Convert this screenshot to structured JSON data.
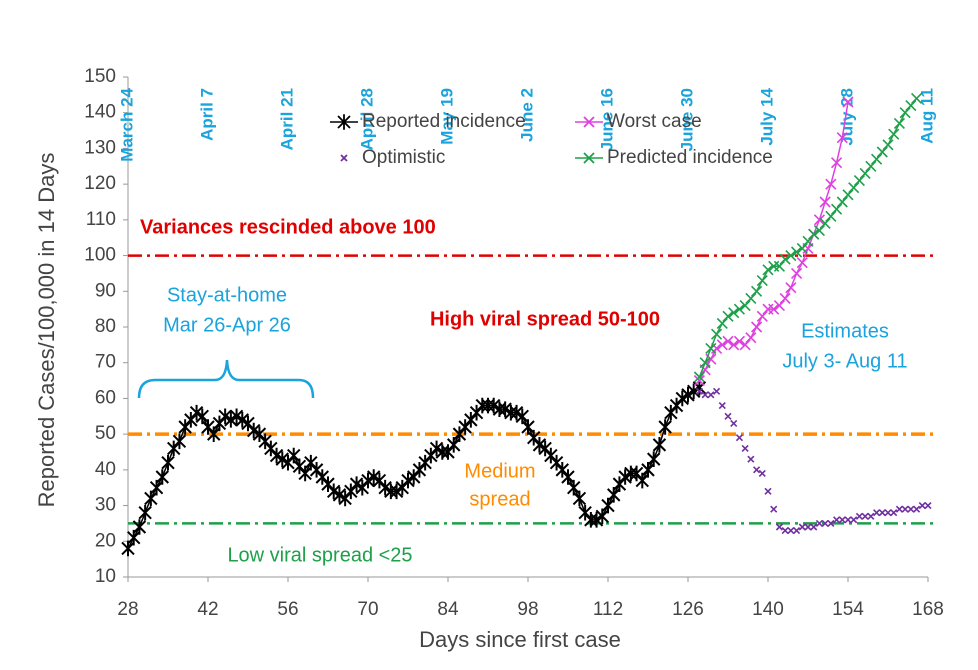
{
  "chart_data": {
    "type": "line",
    "xlabel": "Days since first case",
    "ylabel": "Reported Cases/100,000 in 14 Days",
    "xlim": [
      28,
      168
    ],
    "xticks": [
      28,
      42,
      56,
      70,
      84,
      98,
      112,
      126,
      140,
      154,
      168
    ],
    "ylim": [
      10,
      150
    ],
    "yticks": [
      10,
      20,
      30,
      40,
      50,
      60,
      70,
      80,
      90,
      100,
      110,
      120,
      130,
      140,
      150
    ],
    "x2ticks": [
      {
        "value": 28,
        "label": "March 24"
      },
      {
        "value": 42,
        "label": "April 7"
      },
      {
        "value": 56,
        "label": "April 21"
      },
      {
        "value": 70,
        "label": "April 28"
      },
      {
        "value": 84,
        "label": "May 19"
      },
      {
        "value": 98,
        "label": "June 2"
      },
      {
        "value": 112,
        "label": "June 16"
      },
      {
        "value": 126,
        "label": "June 30"
      },
      {
        "value": 140,
        "label": "July 14"
      },
      {
        "value": 154,
        "label": "July 28"
      },
      {
        "value": 168,
        "label": "Aug 11"
      }
    ],
    "ref_lines": [
      {
        "value": 100,
        "color": "#e00000"
      },
      {
        "value": 50,
        "color": "#ff8c00"
      },
      {
        "value": 25,
        "color": "#1ea04a"
      }
    ],
    "annotations": [
      {
        "text": "Variances rescinded above 100",
        "color": "#e00000"
      },
      {
        "text": "Stay-at-home",
        "color": "#1aa3dc"
      },
      {
        "text": "Mar 26-Apr 26",
        "color": "#1aa3dc"
      },
      {
        "text": "High viral spread 50-100",
        "color": "#e00000"
      },
      {
        "text": "Estimates",
        "color": "#1aa3dc"
      },
      {
        "text": "July 3- Aug 11",
        "color": "#1aa3dc"
      },
      {
        "text": "Medium",
        "color": "#ff8c00"
      },
      {
        "text": "spread",
        "color": "#ff8c00"
      },
      {
        "text": "Low viral spread <25",
        "color": "#1ea04a"
      }
    ],
    "series": [
      {
        "name": "Reported incidence",
        "color": "#000000",
        "line": true,
        "x": [
          28,
          29,
          30,
          31,
          32,
          33,
          34,
          35,
          36,
          37,
          38,
          39,
          40,
          41,
          42,
          43,
          44,
          45,
          46,
          47,
          48,
          49,
          50,
          51,
          52,
          53,
          54,
          55,
          56,
          57,
          58,
          59,
          60,
          61,
          62,
          63,
          64,
          65,
          66,
          67,
          68,
          69,
          70,
          71,
          72,
          73,
          74,
          75,
          76,
          77,
          78,
          79,
          80,
          81,
          82,
          83,
          84,
          85,
          86,
          87,
          88,
          89,
          90,
          91,
          92,
          93,
          94,
          95,
          96,
          97,
          98,
          99,
          100,
          101,
          102,
          103,
          104,
          105,
          106,
          107,
          108,
          109,
          110,
          111,
          112,
          113,
          114,
          115,
          116,
          117,
          118,
          119,
          120,
          121,
          122,
          123,
          124,
          125,
          126,
          127,
          128
        ],
        "values": [
          18,
          21,
          24,
          28,
          32,
          35,
          38,
          42,
          46,
          48,
          52,
          54,
          56,
          55,
          52,
          50,
          53,
          55,
          54,
          55,
          54,
          53,
          51,
          50,
          48,
          46,
          44,
          43,
          42,
          44,
          41,
          39,
          42,
          40,
          38,
          36,
          34,
          33,
          32,
          34,
          36,
          35,
          37,
          38,
          37,
          35,
          34,
          34,
          35,
          37,
          38,
          40,
          42,
          44,
          46,
          45,
          45,
          47,
          50,
          52,
          54,
          56,
          58,
          58,
          58,
          57,
          57,
          56,
          56,
          55,
          52,
          49,
          47,
          46,
          44,
          42,
          40,
          38,
          35,
          32,
          28,
          26,
          26,
          27,
          30,
          33,
          36,
          38,
          39,
          39,
          37,
          40,
          43,
          47,
          52,
          56,
          58,
          60,
          61,
          62,
          63
        ]
      },
      {
        "name": "Worst case",
        "color": "#e040e0",
        "line": true,
        "x": [
          128,
          129,
          130,
          131,
          132,
          133,
          134,
          135,
          136,
          137,
          138,
          139,
          140,
          141,
          142,
          143,
          144,
          145,
          146,
          147,
          148,
          149,
          150,
          151,
          152,
          153,
          154
        ],
        "values": [
          65,
          68,
          71,
          74,
          75,
          76,
          75,
          76,
          75,
          77,
          80,
          83,
          85,
          85,
          86,
          88,
          91,
          95,
          98,
          102,
          106,
          110,
          115,
          120,
          126,
          133,
          143
        ]
      },
      {
        "name": "Optimistic",
        "color": "#7030a0",
        "line": false,
        "x": [
          128,
          129,
          130,
          131,
          132,
          133,
          134,
          135,
          136,
          137,
          138,
          139,
          140,
          141,
          142,
          143,
          144,
          145,
          146,
          147,
          148,
          149,
          150,
          151,
          152,
          153,
          154,
          155,
          156,
          157,
          158,
          159,
          160,
          161,
          162,
          163,
          164,
          165,
          166,
          167,
          168
        ],
        "values": [
          62,
          61,
          61,
          62,
          58,
          55,
          53,
          49,
          46,
          43,
          40,
          39,
          34,
          29,
          24,
          23,
          23,
          23,
          24,
          24,
          24,
          25,
          25,
          25,
          26,
          26,
          26,
          26,
          27,
          27,
          27,
          28,
          28,
          28,
          28,
          29,
          29,
          29,
          29,
          30,
          30
        ]
      },
      {
        "name": "Predicted incidence",
        "color": "#1ea04a",
        "line": true,
        "x": [
          128,
          129,
          130,
          131,
          132,
          133,
          134,
          135,
          136,
          137,
          138,
          139,
          140,
          141,
          142,
          143,
          144,
          145,
          146,
          147,
          148,
          149,
          150,
          151,
          152,
          153,
          154,
          155,
          156,
          157,
          158,
          159,
          160,
          161,
          162,
          163,
          164,
          165,
          166
        ],
        "values": [
          66,
          70,
          74,
          78,
          81,
          83,
          84,
          85,
          86,
          88,
          90,
          93,
          96,
          97,
          97,
          99,
          100,
          101,
          102,
          104,
          106,
          107,
          109,
          111,
          113,
          115,
          117,
          119,
          121,
          123,
          125,
          127,
          129,
          131,
          134,
          137,
          140,
          142,
          144
        ]
      }
    ]
  }
}
